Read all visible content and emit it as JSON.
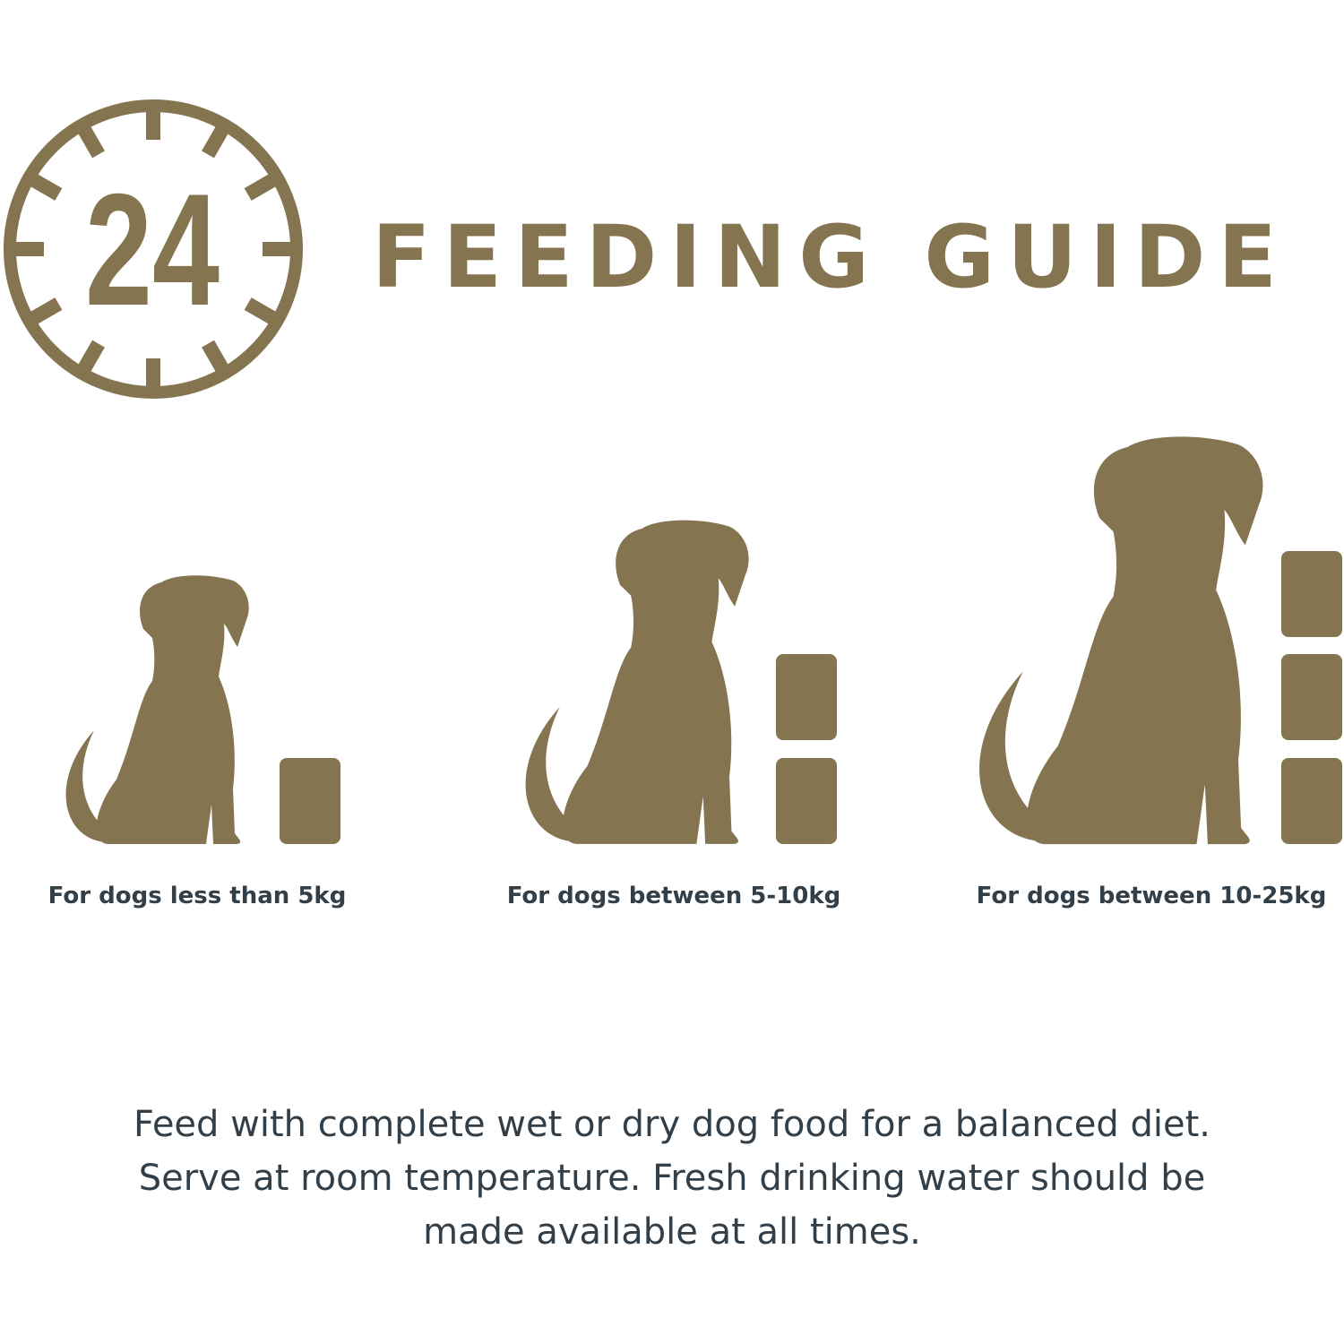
{
  "colors": {
    "brand": "#84744f",
    "text": "#333f48"
  },
  "badge": {
    "icon": "24-hour-clock-icon",
    "number": "24"
  },
  "header": {
    "title": "FEEDING GUIDE"
  },
  "sizes": [
    {
      "label": "For dogs less than 5kg",
      "portions": 1
    },
    {
      "label": "For dogs between 5-10kg",
      "portions": 2
    },
    {
      "label": "For dogs between 10-25kg",
      "portions": 3
    }
  ],
  "instructions": {
    "lines": [
      "Feed with complete wet or dry dog food for a balanced diet.",
      "Serve at room temperature. Fresh drinking water should be",
      "made available at all times."
    ]
  }
}
